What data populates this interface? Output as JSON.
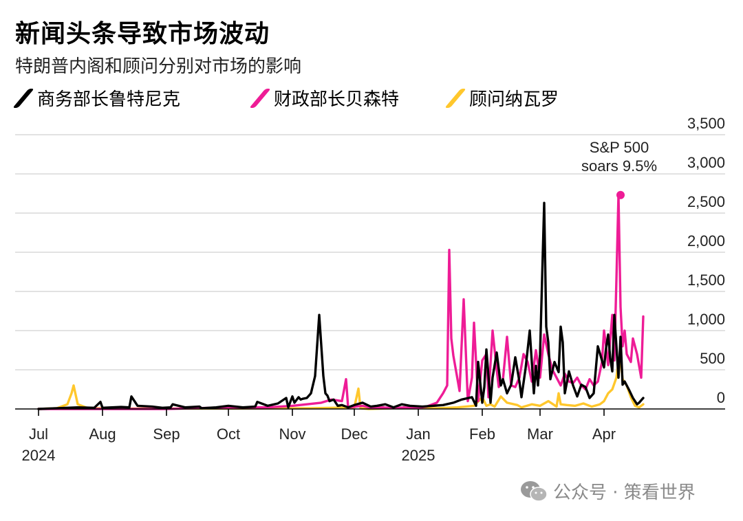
{
  "title": "新闻头条导致市场波动",
  "subtitle": "特朗普内阁和顾问分别对市场的影响",
  "watermark": "公众号 · 策看世界",
  "colors": {
    "lutnick": "#000000",
    "bessent": "#ee1c96",
    "navarro": "#ffc72c",
    "grid": "#d0d0d0",
    "axis": "#000000"
  },
  "chart_data": {
    "type": "line",
    "xlabel": "",
    "ylabel": "",
    "ylim": [
      0,
      3500
    ],
    "y_ticks": [
      "0",
      "500",
      "1,000",
      "1,500",
      "2,000",
      "2,500",
      "3,000",
      "3,500"
    ],
    "y_tick_values": [
      0,
      500,
      1000,
      1500,
      2000,
      2500,
      3000,
      3500
    ],
    "x_ticks": [
      {
        "label": "Jul",
        "sub": "2024",
        "day": 0
      },
      {
        "label": "Aug",
        "sub": "",
        "day": 31
      },
      {
        "label": "Sep",
        "sub": "",
        "day": 62
      },
      {
        "label": "Oct",
        "sub": "",
        "day": 92
      },
      {
        "label": "Nov",
        "sub": "",
        "day": 123
      },
      {
        "label": "Dec",
        "sub": "",
        "day": 153
      },
      {
        "label": "Jan",
        "sub": "2025",
        "day": 184
      },
      {
        "label": "Feb",
        "sub": "",
        "day": 215
      },
      {
        "label": "Mar",
        "sub": "",
        "day": 243
      },
      {
        "label": "Apr",
        "sub": "",
        "day": 274
      }
    ],
    "annotation": {
      "text_line1": "S&P 500",
      "text_line2": "soars 9.5%",
      "series": "bessent",
      "x": "2025-04-09",
      "y": 2730
    },
    "legend": [
      "商务部长鲁特尼克",
      "财政部长贝森特",
      "顾问纳瓦罗"
    ],
    "series": [
      {
        "name": "商务部长鲁特尼克",
        "key": "lutnick",
        "x": [
          "2024-07-01",
          "2024-07-10",
          "2024-07-20",
          "2024-07-28",
          "2024-07-31",
          "2024-08-01",
          "2024-08-10",
          "2024-08-14",
          "2024-08-15",
          "2024-08-18",
          "2024-08-25",
          "2024-08-30",
          "2024-09-03",
          "2024-09-04",
          "2024-09-10",
          "2024-09-17",
          "2024-09-18",
          "2024-09-25",
          "2024-10-01",
          "2024-10-08",
          "2024-10-14",
          "2024-10-15",
          "2024-10-20",
          "2024-10-25",
          "2024-10-29",
          "2024-10-30",
          "2024-11-01",
          "2024-11-02",
          "2024-11-04",
          "2024-11-05",
          "2024-11-06",
          "2024-11-08",
          "2024-11-10",
          "2024-11-12",
          "2024-11-14",
          "2024-11-16",
          "2024-11-17",
          "2024-11-18",
          "2024-11-19",
          "2024-11-21",
          "2024-11-23",
          "2024-11-25",
          "2024-11-28",
          "2024-12-01",
          "2024-12-05",
          "2024-12-09",
          "2024-12-12",
          "2024-12-16",
          "2024-12-20",
          "2024-12-24",
          "2024-12-28",
          "2025-01-03",
          "2025-01-08",
          "2025-01-13",
          "2025-01-18",
          "2025-01-22",
          "2025-01-27",
          "2025-01-29",
          "2025-01-30",
          "2025-02-01",
          "2025-02-02",
          "2025-02-03",
          "2025-02-05",
          "2025-02-06",
          "2025-02-08",
          "2025-02-10",
          "2025-02-11",
          "2025-02-13",
          "2025-02-15",
          "2025-02-17",
          "2025-02-19",
          "2025-02-20",
          "2025-02-22",
          "2025-02-24",
          "2025-02-26",
          "2025-02-27",
          "2025-02-28",
          "2025-03-01",
          "2025-03-03",
          "2025-03-04",
          "2025-03-05",
          "2025-03-06",
          "2025-03-08",
          "2025-03-10",
          "2025-03-11",
          "2025-03-12",
          "2025-03-13",
          "2025-03-15",
          "2025-03-17",
          "2025-03-19",
          "2025-03-21",
          "2025-03-23",
          "2025-03-25",
          "2025-03-27",
          "2025-03-29",
          "2025-04-01",
          "2025-04-02",
          "2025-04-03",
          "2025-04-04",
          "2025-04-05",
          "2025-04-06",
          "2025-04-07",
          "2025-04-08",
          "2025-04-09",
          "2025-04-10",
          "2025-04-11",
          "2025-04-13",
          "2025-04-15",
          "2025-04-17",
          "2025-04-18",
          "2025-04-20"
        ],
        "values": [
          0,
          10,
          20,
          15,
          90,
          15,
          25,
          20,
          160,
          40,
          30,
          15,
          20,
          60,
          20,
          30,
          10,
          20,
          40,
          20,
          30,
          90,
          40,
          70,
          140,
          20,
          160,
          80,
          150,
          120,
          130,
          140,
          200,
          420,
          1200,
          420,
          200,
          170,
          100,
          120,
          40,
          50,
          20,
          50,
          80,
          30,
          40,
          60,
          20,
          60,
          40,
          30,
          40,
          50,
          80,
          120,
          150,
          40,
          600,
          80,
          280,
          760,
          80,
          400,
          720,
          300,
          380,
          200,
          310,
          660,
          350,
          150,
          520,
          1000,
          200,
          550,
          300,
          700,
          2630,
          1050,
          850,
          380,
          600,
          470,
          1050,
          850,
          200,
          480,
          300,
          160,
          310,
          280,
          140,
          200,
          800,
          530,
          780,
          950,
          650,
          480,
          1200,
          800,
          400,
          920,
          310,
          350,
          250,
          140,
          60,
          80,
          140
        ]
      },
      {
        "name": "财政部长贝森特",
        "key": "bessent",
        "x": [
          "2024-07-01",
          "2024-09-01",
          "2024-10-01",
          "2024-10-20",
          "2024-11-01",
          "2024-11-08",
          "2024-11-15",
          "2024-11-20",
          "2024-11-25",
          "2024-11-27",
          "2024-11-28",
          "2024-12-05",
          "2024-12-10",
          "2024-12-15",
          "2024-12-20",
          "2024-12-25",
          "2024-12-30",
          "2025-01-05",
          "2025-01-10",
          "2025-01-13",
          "2025-01-15",
          "2025-01-16",
          "2025-01-17",
          "2025-01-18",
          "2025-01-21",
          "2025-01-23",
          "2025-01-25",
          "2025-01-27",
          "2025-01-28",
          "2025-01-30",
          "2025-02-01",
          "2025-02-03",
          "2025-02-04",
          "2025-02-06",
          "2025-02-08",
          "2025-02-09",
          "2025-02-11",
          "2025-02-13",
          "2025-02-15",
          "2025-02-17",
          "2025-02-19",
          "2025-02-21",
          "2025-02-23",
          "2025-02-25",
          "2025-02-27",
          "2025-03-01",
          "2025-03-03",
          "2025-03-05",
          "2025-03-07",
          "2025-03-09",
          "2025-03-11",
          "2025-03-13",
          "2025-03-15",
          "2025-03-17",
          "2025-03-19",
          "2025-03-21",
          "2025-03-23",
          "2025-03-25",
          "2025-03-27",
          "2025-03-29",
          "2025-03-31",
          "2025-04-01",
          "2025-04-02",
          "2025-04-03",
          "2025-04-05",
          "2025-04-06",
          "2025-04-07",
          "2025-04-08",
          "2025-04-09",
          "2025-04-10",
          "2025-04-11",
          "2025-04-12",
          "2025-04-14",
          "2025-04-15",
          "2025-04-17",
          "2025-04-19",
          "2025-04-20"
        ],
        "values": [
          0,
          0,
          20,
          20,
          40,
          60,
          80,
          120,
          100,
          380,
          20,
          40,
          10,
          20,
          10,
          20,
          10,
          30,
          80,
          200,
          300,
          2030,
          900,
          680,
          230,
          1400,
          100,
          400,
          1100,
          100,
          620,
          700,
          150,
          1000,
          500,
          280,
          370,
          920,
          300,
          280,
          400,
          700,
          600,
          350,
          750,
          400,
          950,
          700,
          500,
          400,
          300,
          450,
          350,
          330,
          400,
          300,
          250,
          380,
          300,
          350,
          600,
          1000,
          800,
          560,
          1200,
          620,
          1650,
          2730,
          1300,
          800,
          1000,
          700,
          600,
          900,
          700,
          400,
          1180
        ]
      },
      {
        "name": "顾问纳瓦罗",
        "key": "navarro",
        "x": [
          "2024-07-01",
          "2024-07-10",
          "2024-07-15",
          "2024-07-17",
          "2024-07-18",
          "2024-07-20",
          "2024-07-25",
          "2024-08-15",
          "2024-10-01",
          "2024-11-10",
          "2024-12-01",
          "2024-12-03",
          "2024-12-04",
          "2024-12-08",
          "2024-12-20",
          "2025-01-10",
          "2025-01-20",
          "2025-01-28",
          "2025-02-01",
          "2025-02-03",
          "2025-02-05",
          "2025-02-07",
          "2025-02-10",
          "2025-02-13",
          "2025-02-18",
          "2025-02-20",
          "2025-02-25",
          "2025-03-01",
          "2025-03-05",
          "2025-03-09",
          "2025-03-10",
          "2025-03-11",
          "2025-03-14",
          "2025-03-18",
          "2025-03-22",
          "2025-03-26",
          "2025-03-30",
          "2025-04-01",
          "2025-04-03",
          "2025-04-05",
          "2025-04-07",
          "2025-04-08",
          "2025-04-09",
          "2025-04-10",
          "2025-04-12",
          "2025-04-14",
          "2025-04-16",
          "2025-04-18",
          "2025-04-20"
        ],
        "values": [
          0,
          10,
          60,
          200,
          300,
          60,
          10,
          5,
          5,
          10,
          20,
          260,
          10,
          0,
          10,
          10,
          20,
          40,
          150,
          40,
          60,
          30,
          160,
          80,
          50,
          20,
          60,
          40,
          100,
          30,
          200,
          60,
          50,
          40,
          70,
          30,
          60,
          100,
          200,
          250,
          400,
          600,
          620,
          380,
          300,
          150,
          40,
          20,
          60
        ]
      }
    ]
  }
}
